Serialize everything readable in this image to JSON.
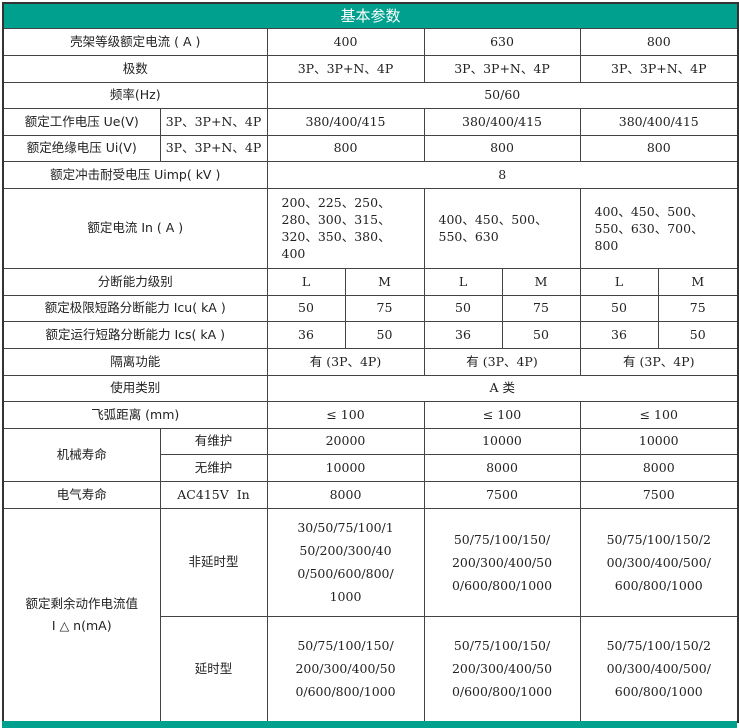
{
  "title": "基本参数",
  "frame_current": {
    "label": "壳架等级额定电流 ( A )",
    "values": [
      "400",
      "630",
      "800"
    ]
  },
  "poles": {
    "label": "极数",
    "values": [
      "3P、3P+N、4P",
      "3P、3P+N、4P",
      "3P、3P+N、4P"
    ]
  },
  "frequency": {
    "label": "频率(Hz)",
    "value": "50/60"
  },
  "ue": {
    "label": "额定工作电压 Ue(V)",
    "sub": "3P、3P+N、4P",
    "values": [
      "380/400/415",
      "380/400/415",
      "380/400/415"
    ]
  },
  "ui": {
    "label": "额定绝缘电压 Ui(V)",
    "sub": "3P、3P+N、4P",
    "values": [
      "800",
      "800",
      "800"
    ]
  },
  "uimp": {
    "label": "额定冲击耐受电压 Uimp( kV )",
    "value": "8"
  },
  "in": {
    "label": "额定电流 In ( A )",
    "values": [
      "200、225、250、280、300、315、320、350、380、400",
      "400、450、500、550、630",
      "400、450、500、550、630、700、800"
    ]
  },
  "breaking_level": {
    "label": "分断能力级别",
    "values": [
      "L",
      "M",
      "L",
      "M",
      "L",
      "M"
    ]
  },
  "icu": {
    "label": "额定极限短路分断能力 Icu( kA )",
    "values": [
      "50",
      "75",
      "50",
      "75",
      "50",
      "75"
    ]
  },
  "ics": {
    "label": "额定运行短路分断能力 Ics( kA )",
    "values": [
      "36",
      "50",
      "36",
      "50",
      "36",
      "50"
    ]
  },
  "isolation": {
    "label": "隔离功能",
    "values": [
      "有 (3P、4P)",
      "有 (3P、4P)",
      "有 (3P、4P)"
    ]
  },
  "category": {
    "label": "使用类别",
    "value": "A 类"
  },
  "arc": {
    "label": "飞弧距离 (mm)",
    "values": [
      "≤ 100",
      "≤ 100",
      "≤ 100"
    ]
  },
  "mech": {
    "label": "机械寿命",
    "with_label": "有维护",
    "with": [
      "20000",
      "10000",
      "10000"
    ],
    "without_label": "无维护",
    "without": [
      "10000",
      "8000",
      "8000"
    ]
  },
  "elec": {
    "label": "电气寿命",
    "sub": "AC415V  In",
    "values": [
      "8000",
      "7500",
      "7500"
    ]
  },
  "residual": {
    "label": "额定剩余动作电流值",
    "label2": "I △ n(mA)",
    "nondelay_label": "非延时型",
    "nondelay": [
      "30/50/75/100/150/200/300/400/500/600/800/1000",
      "50/75/100/150/200/300/400/500/600/800/1000",
      "50/75/100/150/200/300/400/500/600/800/1000"
    ],
    "delay_label": "延时型",
    "delay": [
      "50/75/100/150/200/300/400/500/600/800/1000",
      "50/75/100/150/200/300/400/500/600/800/1000",
      "50/75/100/150/200/300/400/500/600/800/1000"
    ]
  },
  "colors": {
    "header": "#00a08e"
  }
}
